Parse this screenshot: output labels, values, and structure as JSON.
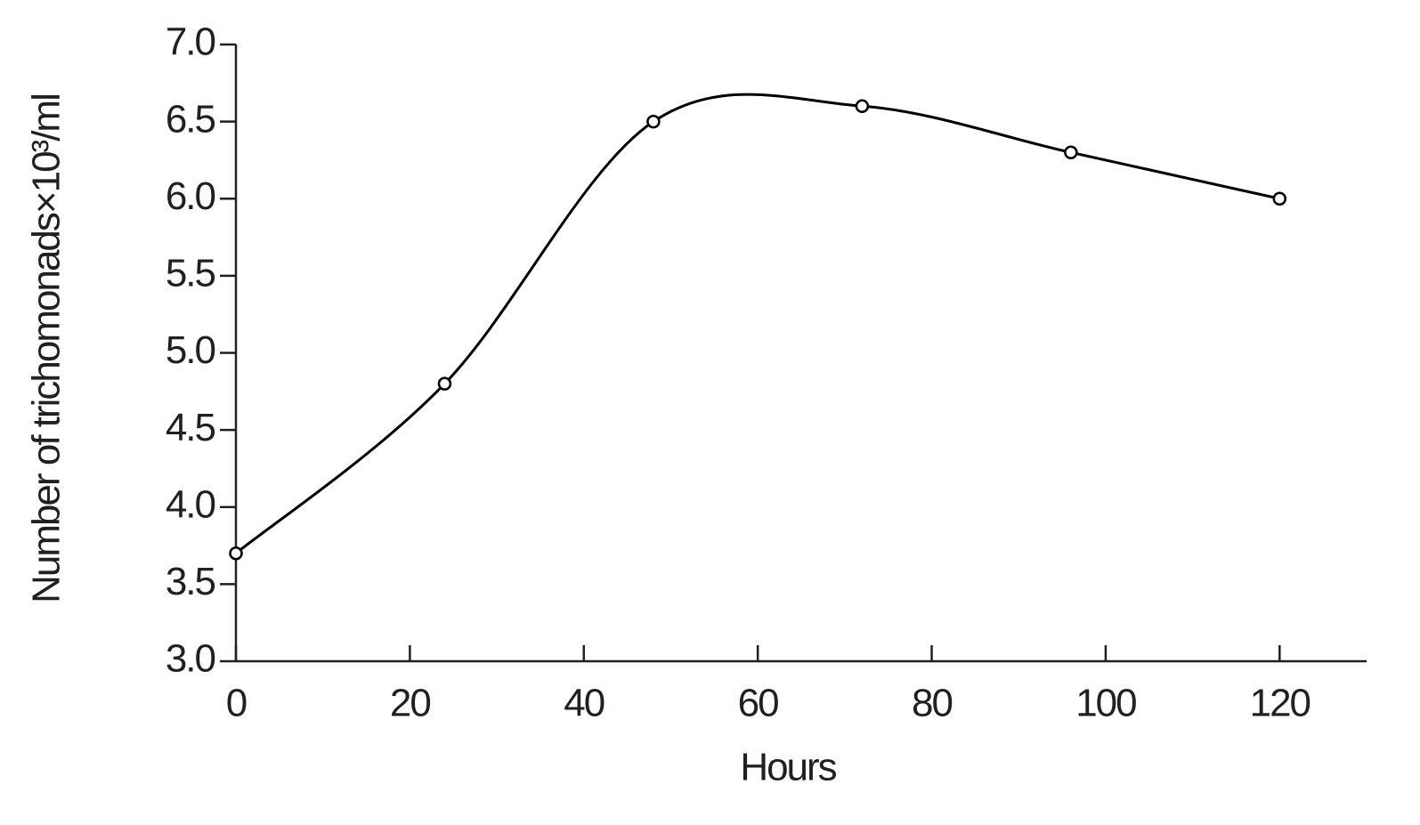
{
  "chart_data": {
    "type": "line",
    "x_label": "Hours",
    "y_label": "Number of trichomonads×10³/ml",
    "x": [
      0,
      24,
      48,
      72,
      96,
      120
    ],
    "values": [
      3.7,
      4.8,
      6.5,
      6.6,
      6.3,
      6.0
    ],
    "color": "#000000",
    "xlim": [
      0,
      130
    ],
    "xticks": [
      0,
      20,
      40,
      60,
      80,
      100,
      120
    ],
    "ylim": [
      3,
      7
    ],
    "yticks": [
      {
        "value": 3,
        "label": "3.0"
      },
      3.5,
      {
        "value": 4,
        "label": "4.0"
      },
      4.5,
      {
        "value": 5,
        "label": "5.0"
      },
      5.5,
      {
        "value": 6,
        "label": "6.0"
      },
      6.5,
      {
        "value": 7,
        "label": "7.0"
      }
    ],
    "grid": false,
    "smooth": true,
    "markers": true
  }
}
